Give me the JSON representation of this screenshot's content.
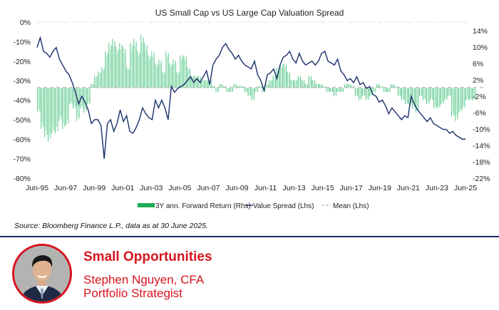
{
  "colors": {
    "bar": "#3dc178",
    "bar_light": "#a6e0bd",
    "line": "#1b2f6b",
    "mean": "#b8b8b8",
    "accent": "#d7141f",
    "divider": "#1c2a5a"
  },
  "chart_data": {
    "type": "bar+line",
    "title": "US Small Cap vs US Large Cap Valuation Spread",
    "xlabel": "",
    "ylabel_left": "Value Spread",
    "ylabel_right": "3Y ann. Forward Return",
    "x_tick_labels": [
      "Jun-95",
      "Jun-97",
      "Jun-99",
      "Jun-01",
      "Jun-03",
      "Jun-05",
      "Jun-07",
      "Jun-09",
      "Jun-11",
      "Jun-13",
      "Jun-15",
      "Jun-17",
      "Jun-19",
      "Jun-21",
      "Jun-23",
      "Jun-25"
    ],
    "x_range_years": [
      1995.5,
      2025.5
    ],
    "left_axis": {
      "range": [
        -80,
        0
      ],
      "ticks": [
        0,
        -10,
        -20,
        -30,
        -40,
        -50,
        -60,
        -70,
        -80
      ],
      "tick_labels": [
        "0%",
        "-10%",
        "-20%",
        "-30%",
        "-40%",
        "-50%",
        "-60%",
        "-70%",
        "-80%"
      ]
    },
    "right_axis": {
      "range": [
        -22,
        14
      ],
      "ticks": [
        14,
        10,
        6,
        2,
        -2,
        -6,
        -10,
        -14,
        -18,
        -22
      ],
      "tick_labels": [
        "14%",
        "10%",
        "6%",
        "2%",
        "-2%",
        "-6%",
        "-10%",
        "-14%",
        "-18%",
        "-22%"
      ]
    },
    "mean_lhs": -33.5,
    "grid": false,
    "legend": {
      "position": "bottom-center",
      "entries": [
        "3Y ann. Forward Return (Rhs)",
        "Value Spread (Lhs)",
        "Mean (Lhs)"
      ]
    },
    "series": [
      {
        "name": "Value Spread (Lhs)",
        "axis": "left",
        "type": "line",
        "start": 1995.5,
        "step_years": 0.25,
        "values": [
          -13,
          -8,
          -15,
          -16,
          -18,
          -15,
          -13,
          -19,
          -22,
          -25,
          -27,
          -31,
          -36,
          -42,
          -38,
          -41,
          -45,
          -52,
          -50,
          -50,
          -53,
          -70,
          -52,
          -50,
          -56,
          -52,
          -45,
          -51,
          -48,
          -56,
          -57,
          -54,
          -50,
          -44,
          -47,
          -49,
          -50,
          -40,
          -44,
          -40,
          -44,
          -50,
          -33,
          -36,
          -34,
          -33,
          -32,
          -30,
          -28,
          -31,
          -29,
          -31,
          -28,
          -25,
          -32,
          -22,
          -19,
          -17,
          -13,
          -11,
          -14,
          -16,
          -19,
          -17,
          -20,
          -22,
          -23,
          -24,
          -20,
          -27,
          -30,
          -35,
          -27,
          -26,
          -24,
          -29,
          -22,
          -18,
          -17,
          -15,
          -19,
          -21,
          -16,
          -20,
          -22,
          -21,
          -20,
          -22,
          -20,
          -16,
          -15,
          -20,
          -21,
          -22,
          -19,
          -25,
          -27,
          -30,
          -29,
          -31,
          -28,
          -32,
          -31,
          -34,
          -33,
          -37,
          -38,
          -41,
          -40,
          -43,
          -47,
          -44,
          -46,
          -48,
          -50,
          -48,
          -49,
          -38,
          -42,
          -45,
          -47,
          -49,
          -51,
          -49,
          -52,
          -53,
          -54,
          -55,
          -55,
          -57,
          -56,
          -58,
          -59,
          -60,
          -60
        ]
      },
      {
        "name": "3Y ann. Forward Return (Rhs)",
        "axis": "right",
        "type": "bar",
        "start": 1995.5,
        "step_years": 0.25,
        "values": [
          -6,
          -10,
          -12,
          -13,
          -11,
          -11,
          -8,
          -10,
          -9,
          -4,
          -5,
          -8,
          -5,
          -6,
          -4,
          1,
          3,
          4,
          5,
          9,
          11,
          12,
          10,
          11,
          10,
          5,
          11,
          12,
          9,
          13,
          11,
          8,
          9,
          6,
          7,
          4,
          9,
          6,
          7,
          4,
          8,
          8,
          5,
          3,
          3,
          3,
          2,
          2,
          2,
          0.5,
          -1,
          1,
          0.5,
          -1,
          -1,
          1,
          0.5,
          0.5,
          -1,
          -2,
          -3,
          -1,
          0.5,
          -1,
          1,
          2,
          3,
          5,
          6,
          6,
          4,
          2,
          2,
          3,
          2,
          1,
          3,
          2,
          1,
          1,
          0.5,
          -1,
          -1,
          -2,
          -1,
          -1,
          1,
          1,
          0.5,
          -2,
          -3,
          -2,
          -3,
          -2,
          -1,
          1,
          0.5,
          -1,
          -1,
          1,
          0.5,
          -2,
          -3,
          -4,
          -4,
          -5,
          -6,
          -2,
          -3,
          -4,
          -3,
          -5,
          -5,
          -4,
          -3,
          -2,
          -7,
          -8,
          -6,
          -5,
          -3,
          -3,
          -3
        ]
      }
    ]
  },
  "footer": {
    "source": "Source: Bloomberg Finance L.P., data as at 30 June 2025."
  },
  "author": {
    "headline": "Small Opportunities",
    "name": "Stephen Nguyen, CFA",
    "role": "Portfolio Strategist"
  }
}
